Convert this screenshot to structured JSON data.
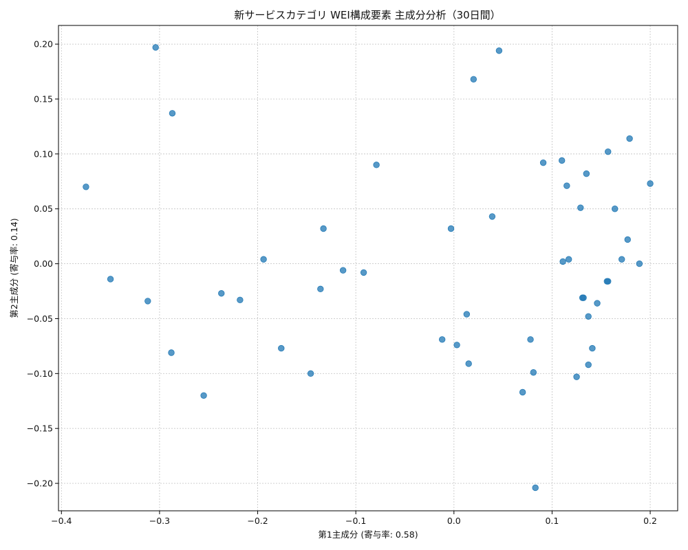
{
  "chart_data": {
    "type": "scatter",
    "title": "新サービスカテゴリ WEI構成要素 主成分分析（30日間）",
    "xlabel": "第1主成分 (寄与率: 0.58)",
    "ylabel": "第2主成分 (寄与率: 0.14)",
    "xlim": [
      -0.403,
      0.228
    ],
    "ylim": [
      -0.225,
      0.217
    ],
    "x_ticks": [
      -0.4,
      -0.3,
      -0.2,
      -0.1,
      0.0,
      0.1,
      0.2
    ],
    "x_tick_labels": [
      "−0.4",
      "−0.3",
      "−0.2",
      "−0.1",
      "0.0",
      "0.1",
      "0.2"
    ],
    "y_ticks": [
      -0.2,
      -0.15,
      -0.1,
      -0.05,
      0.0,
      0.05,
      0.1,
      0.15,
      0.2
    ],
    "y_tick_labels": [
      "−0.20",
      "−0.15",
      "−0.10",
      "−0.05",
      "0.00",
      "0.05",
      "0.10",
      "0.15",
      "0.20"
    ],
    "grid": true,
    "color": "#1f77b4",
    "points": [
      {
        "x": -0.304,
        "y": 0.197
      },
      {
        "x": -0.287,
        "y": 0.137
      },
      {
        "x": -0.375,
        "y": 0.07
      },
      {
        "x": -0.35,
        "y": -0.014
      },
      {
        "x": -0.312,
        "y": -0.034
      },
      {
        "x": -0.288,
        "y": -0.081
      },
      {
        "x": -0.255,
        "y": -0.12
      },
      {
        "x": -0.237,
        "y": -0.027
      },
      {
        "x": -0.218,
        "y": -0.033
      },
      {
        "x": -0.194,
        "y": 0.004
      },
      {
        "x": -0.176,
        "y": -0.077
      },
      {
        "x": -0.146,
        "y": -0.1
      },
      {
        "x": -0.136,
        "y": -0.023
      },
      {
        "x": -0.133,
        "y": 0.032
      },
      {
        "x": -0.113,
        "y": -0.006
      },
      {
        "x": -0.092,
        "y": -0.008
      },
      {
        "x": -0.079,
        "y": 0.09
      },
      {
        "x": -0.003,
        "y": 0.032
      },
      {
        "x": -0.012,
        "y": -0.069
      },
      {
        "x": 0.003,
        "y": -0.074
      },
      {
        "x": 0.013,
        "y": -0.046
      },
      {
        "x": 0.015,
        "y": -0.091
      },
      {
        "x": 0.02,
        "y": 0.168
      },
      {
        "x": 0.039,
        "y": 0.043
      },
      {
        "x": 0.046,
        "y": 0.194
      },
      {
        "x": 0.07,
        "y": -0.117
      },
      {
        "x": 0.078,
        "y": -0.069
      },
      {
        "x": 0.081,
        "y": -0.099
      },
      {
        "x": 0.083,
        "y": -0.204
      },
      {
        "x": 0.091,
        "y": 0.092
      },
      {
        "x": 0.11,
        "y": 0.094
      },
      {
        "x": 0.111,
        "y": 0.002
      },
      {
        "x": 0.115,
        "y": 0.071
      },
      {
        "x": 0.117,
        "y": 0.004
      },
      {
        "x": 0.125,
        "y": -0.103
      },
      {
        "x": 0.129,
        "y": 0.051
      },
      {
        "x": 0.131,
        "y": -0.031
      },
      {
        "x": 0.132,
        "y": -0.031
      },
      {
        "x": 0.135,
        "y": 0.082
      },
      {
        "x": 0.137,
        "y": -0.048
      },
      {
        "x": 0.137,
        "y": -0.092
      },
      {
        "x": 0.141,
        "y": -0.077
      },
      {
        "x": 0.146,
        "y": -0.036
      },
      {
        "x": 0.156,
        "y": -0.016
      },
      {
        "x": 0.157,
        "y": 0.102
      },
      {
        "x": 0.157,
        "y": -0.016
      },
      {
        "x": 0.164,
        "y": 0.05
      },
      {
        "x": 0.171,
        "y": 0.004
      },
      {
        "x": 0.177,
        "y": 0.022
      },
      {
        "x": 0.179,
        "y": 0.114
      },
      {
        "x": 0.189,
        "y": 0.0
      },
      {
        "x": 0.2,
        "y": 0.073
      }
    ]
  }
}
